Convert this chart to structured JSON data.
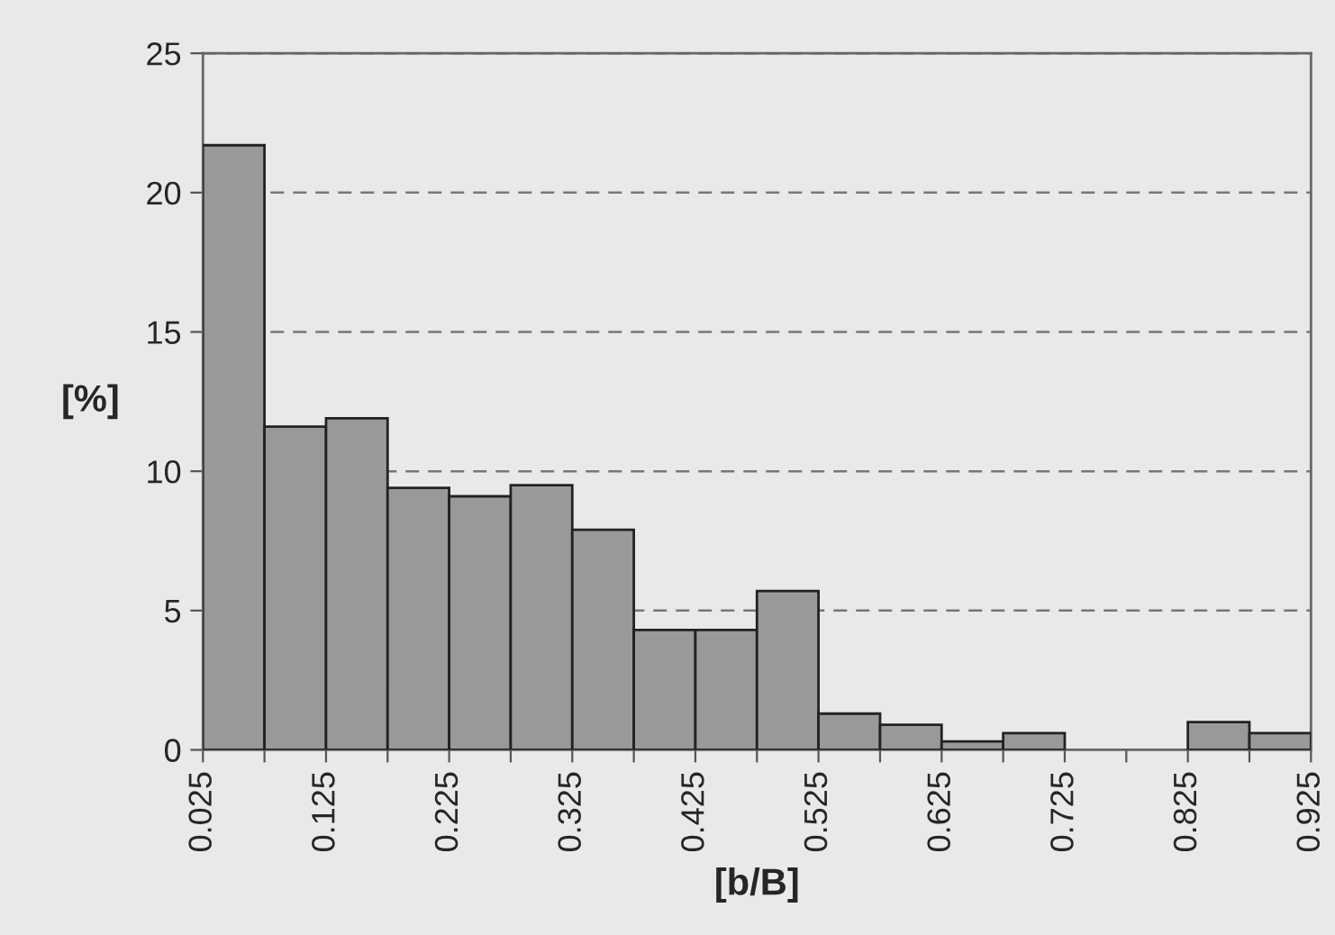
{
  "chart_data": {
    "type": "histogram",
    "xlabel": "[b/B]",
    "ylabel": "[%]",
    "bins": [
      0.025,
      0.075,
      0.125,
      0.175,
      0.225,
      0.275,
      0.325,
      0.375,
      0.425,
      0.475,
      0.525,
      0.575,
      0.625,
      0.675,
      0.725,
      0.775,
      0.825,
      0.875,
      0.925
    ],
    "values": [
      21.7,
      11.6,
      11.9,
      9.4,
      9.1,
      9.5,
      7.9,
      4.3,
      4.3,
      5.7,
      1.3,
      0.9,
      0.3,
      0.6,
      0,
      0,
      1.0,
      0.6
    ],
    "color": "#999999",
    "xlim": [
      0.025,
      0.925
    ],
    "xticks": [
      0.025,
      {
        "value": 0.075,
        "label": null
      },
      0.125,
      {
        "value": 0.175,
        "label": null
      },
      0.225,
      {
        "value": 0.275,
        "label": null
      },
      0.325,
      {
        "value": 0.375,
        "label": null
      },
      0.425,
      {
        "value": 0.475,
        "label": null
      },
      0.525,
      {
        "value": 0.575,
        "label": null
      },
      0.625,
      {
        "value": 0.675,
        "label": null
      },
      0.725,
      {
        "value": 0.775,
        "label": null
      },
      0.825,
      {
        "value": 0.875,
        "label": null
      },
      0.925
    ],
    "ylim": [
      0,
      25
    ],
    "yticks": [
      0,
      5,
      10,
      15,
      20,
      25
    ],
    "grid": "y"
  }
}
